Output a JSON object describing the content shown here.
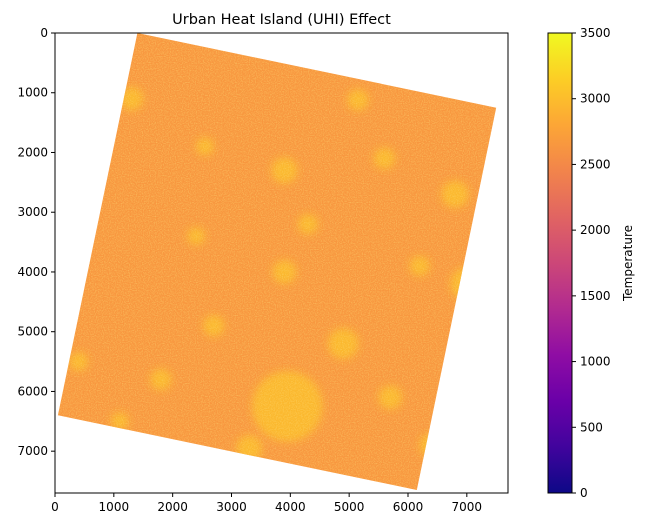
{
  "chart_data": {
    "type": "heatmap",
    "title": "Urban Heat Island (UHI) Effect",
    "xlabel": "",
    "ylabel": "",
    "x_ticks": [
      0,
      1000,
      2000,
      3000,
      4000,
      5000,
      6000,
      7000
    ],
    "y_ticks": [
      0,
      1000,
      2000,
      3000,
      4000,
      5000,
      6000,
      7000
    ],
    "xlim": [
      0,
      7700
    ],
    "ylim": [
      7700,
      0
    ],
    "colorbar": {
      "label": "Temperature",
      "colormap": "plasma",
      "range": [
        0,
        3500
      ],
      "ticks": [
        0,
        500,
        1000,
        1500,
        2000,
        2500,
        3000,
        3500
      ]
    },
    "scene_corners": [
      {
        "x": 1400,
        "y": 0
      },
      {
        "x": 7500,
        "y": 1250
      },
      {
        "x": 6150,
        "y": 7650
      },
      {
        "x": 50,
        "y": 6400
      }
    ],
    "typical_value": 2650,
    "hotspot_value": 3050,
    "hotspots": [
      {
        "x": 3950,
        "y": 6250,
        "r": 600
      },
      {
        "x": 3900,
        "y": 2300,
        "r": 220
      },
      {
        "x": 5150,
        "y": 1120,
        "r": 180
      },
      {
        "x": 4900,
        "y": 5200,
        "r": 260
      },
      {
        "x": 6800,
        "y": 2700,
        "r": 230
      },
      {
        "x": 7000,
        "y": 4200,
        "r": 280
      },
      {
        "x": 3300,
        "y": 6950,
        "r": 220
      },
      {
        "x": 1300,
        "y": 1100,
        "r": 200
      },
      {
        "x": 2550,
        "y": 1900,
        "r": 150
      },
      {
        "x": 1800,
        "y": 5800,
        "r": 180
      },
      {
        "x": 400,
        "y": 5500,
        "r": 160
      },
      {
        "x": 3900,
        "y": 4000,
        "r": 200
      },
      {
        "x": 6400,
        "y": 6900,
        "r": 200
      },
      {
        "x": 1100,
        "y": 6500,
        "r": 150
      },
      {
        "x": 5700,
        "y": 6100,
        "r": 200
      },
      {
        "x": 2700,
        "y": 4900,
        "r": 180
      },
      {
        "x": 4300,
        "y": 3200,
        "r": 170
      },
      {
        "x": 6200,
        "y": 3900,
        "r": 170
      },
      {
        "x": 2400,
        "y": 3400,
        "r": 150
      },
      {
        "x": 5600,
        "y": 2100,
        "r": 180
      }
    ]
  },
  "colors": {
    "plasma_stops": [
      "#0d0887",
      "#41049d",
      "#6a00a8",
      "#8f0da4",
      "#b12a90",
      "#cc4778",
      "#e16462",
      "#f2844b",
      "#fca636",
      "#fcce25",
      "#f0f921"
    ]
  }
}
